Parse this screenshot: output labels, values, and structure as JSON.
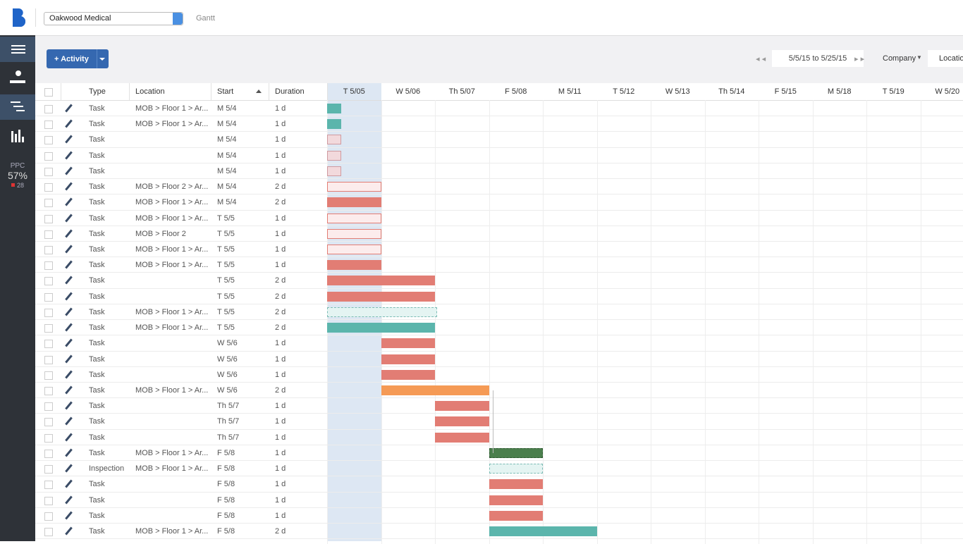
{
  "header": {
    "project": "Oakwood Medical",
    "breadcrumb": "Gantt"
  },
  "sidebar": {
    "ppc_label": "PPC",
    "ppc_value": "57%",
    "ppc_count": "28"
  },
  "toolbar": {
    "add_button": "+ Activity",
    "date_range": "5/5/15 to 5/25/15",
    "group_by": "Company",
    "filter": "Location"
  },
  "table": {
    "columns": [
      "Type",
      "Location",
      "Start",
      "Duration"
    ],
    "days": [
      "T 5/05",
      "W 5/06",
      "Th 5/07",
      "F 5/08",
      "M 5/11",
      "T 5/12",
      "W 5/13",
      "Th 5/14",
      "F 5/15",
      "M 5/18",
      "T 5/19",
      "W 5/20"
    ],
    "rows": [
      [
        "Task",
        "MOB > Floor 1 > Ar...",
        "M 5/4",
        "1 d",
        "teal"
      ],
      [
        "Task",
        "MOB > Floor 1 > Ar...",
        "M 5/4",
        "1 d",
        "teal"
      ],
      [
        "Task",
        null,
        "M 5/4",
        "1 d",
        "pink"
      ],
      [
        "Task",
        null,
        "M 5/4",
        "1 d",
        "pink"
      ],
      [
        "Task",
        null,
        "M 5/4",
        "1 d",
        "pink"
      ],
      [
        "Task",
        "MOB > Floor 2 > Ar...",
        "M 5/4",
        "2 d",
        "outline"
      ],
      [
        "Task",
        "MOB > Floor 1 > Ar...",
        "M 5/4",
        "2 d",
        "red"
      ],
      [
        "Task",
        "MOB > Floor 1 > Ar...",
        "T 5/5",
        "1 d",
        "outline"
      ],
      [
        "Task",
        "MOB > Floor 2",
        "T 5/5",
        "1 d",
        "outline"
      ],
      [
        "Task",
        "MOB > Floor 1 > Ar...",
        "T 5/5",
        "1 d",
        "outline"
      ],
      [
        "Task",
        "MOB > Floor 1 > Ar...",
        "T 5/5",
        "1 d",
        "red"
      ],
      [
        "Task",
        null,
        "T 5/5",
        "2 d",
        "red"
      ],
      [
        "Task",
        null,
        "T 5/5",
        "2 d",
        "red"
      ],
      [
        "Task",
        "MOB > Floor 1 > Ar...",
        "T 5/5",
        "2 d",
        "dashed"
      ],
      [
        "Task",
        "MOB > Floor 1 > Ar...",
        "T 5/5",
        "2 d",
        "teal"
      ],
      [
        "Task",
        null,
        "W 5/6",
        "1 d",
        "red"
      ],
      [
        "Task",
        null,
        "W 5/6",
        "1 d",
        "red"
      ],
      [
        "Task",
        null,
        "W 5/6",
        "1 d",
        "red"
      ],
      [
        "Task",
        "MOB > Floor 1 > Ar...",
        "W 5/6",
        "2 d",
        "orange"
      ],
      [
        "Task",
        null,
        "Th 5/7",
        "1 d",
        "red"
      ],
      [
        "Task",
        null,
        "Th 5/7",
        "1 d",
        "red"
      ],
      [
        "Task",
        null,
        "Th 5/7",
        "1 d",
        "red"
      ],
      [
        "Task",
        "MOB > Floor 1 > Ar...",
        "F 5/8",
        "1 d",
        "green"
      ],
      [
        "Inspection",
        "MOB > Floor 1 > Ar...",
        "F 5/8",
        "1 d",
        "dashed"
      ],
      [
        "Task",
        null,
        "F 5/8",
        "1 d",
        "red"
      ],
      [
        "Task",
        null,
        "F 5/8",
        "1 d",
        "red"
      ],
      [
        "Task",
        null,
        "F 5/8",
        "1 d",
        "red"
      ],
      [
        "Task",
        "MOB > Floor 1 > Ar...",
        "F 5/8",
        "2 d",
        "teal"
      ]
    ]
  }
}
